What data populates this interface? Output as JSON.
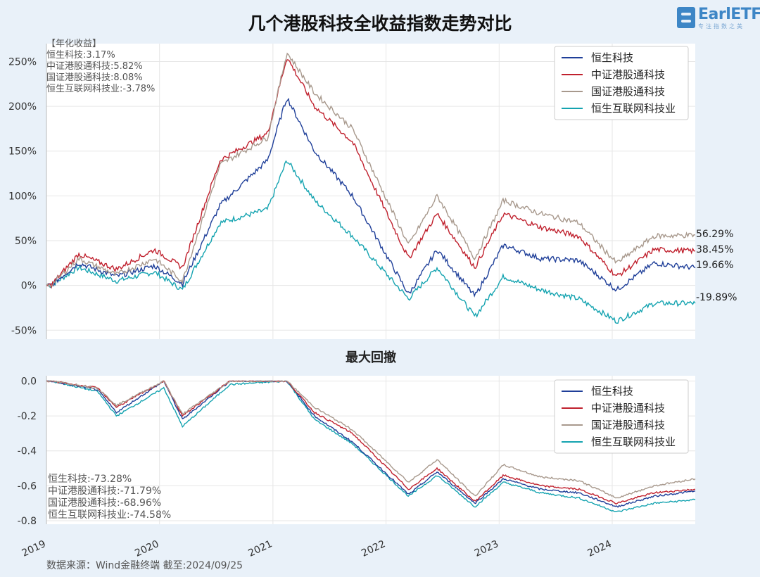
{
  "title": "几个港股科技全收益指数走势对比",
  "logo_text": "EarlETF",
  "logo_sub": "专注指数之美",
  "source": "数据来源：Wind金融终端 截至:2024/09/25",
  "colors": {
    "恒生科技": "#1f3f99",
    "中证港股通科技": "#c0212e",
    "国证港股通科技": "#a8998d",
    "恒生互联网科技业": "#14a3b0"
  },
  "chart_data": [
    {
      "type": "line",
      "title": "",
      "ylim": [
        -60,
        270
      ],
      "yticks": [
        "250%",
        "200%",
        "150%",
        "100%",
        "50%",
        "0%",
        "-50%"
      ],
      "ytick_values": [
        250,
        200,
        150,
        100,
        50,
        0,
        -50
      ],
      "xticks": [
        "2019",
        "2020",
        "2021",
        "2022",
        "2023",
        "2024"
      ],
      "xrange": [
        "2019-01-01",
        "2024-09-25"
      ],
      "legend": "top-right",
      "annotation_title": "【年化收益】",
      "annotations": [
        "恒生科技:3.17%",
        "中证港股通科技:5.82%",
        "国证港股通科技:8.08%",
        "恒生互联网科技业:-3.78%"
      ],
      "end_labels": [
        "56.29%",
        "38.45%",
        "19.66%",
        "-19.89%"
      ],
      "series": [
        {
          "name": "恒生科技",
          "x": [
            "2019-01",
            "2019-04",
            "2019-08",
            "2019-12",
            "2020-03",
            "2020-07",
            "2020-12",
            "2021-02",
            "2021-05",
            "2021-09",
            "2022-03",
            "2022-06",
            "2022-10",
            "2023-01",
            "2023-05",
            "2023-09",
            "2024-01",
            "2024-05",
            "2024-09-25"
          ],
          "y": [
            0,
            25,
            10,
            22,
            2,
            90,
            140,
            210,
            150,
            100,
            -10,
            40,
            -12,
            45,
            30,
            28,
            -5,
            25,
            19.66
          ]
        },
        {
          "name": "中证港股通科技",
          "x": [
            "2019-01",
            "2019-04",
            "2019-08",
            "2019-12",
            "2020-03",
            "2020-07",
            "2020-12",
            "2021-02",
            "2021-05",
            "2021-09",
            "2022-03",
            "2022-06",
            "2022-10",
            "2023-01",
            "2023-05",
            "2023-09",
            "2024-01",
            "2024-05",
            "2024-09-25"
          ],
          "y": [
            0,
            35,
            18,
            40,
            20,
            140,
            170,
            255,
            200,
            160,
            30,
            80,
            20,
            80,
            65,
            55,
            10,
            40,
            38.45
          ]
        },
        {
          "name": "国证港股通科技",
          "x": [
            "2019-01",
            "2019-04",
            "2019-08",
            "2019-12",
            "2020-03",
            "2020-07",
            "2020-12",
            "2021-02",
            "2021-05",
            "2021-09",
            "2022-03",
            "2022-06",
            "2022-10",
            "2023-01",
            "2023-05",
            "2023-09",
            "2024-01",
            "2024-05",
            "2024-09-25"
          ],
          "y": [
            0,
            30,
            12,
            30,
            5,
            135,
            165,
            260,
            215,
            175,
            45,
            100,
            30,
            95,
            80,
            70,
            25,
            55,
            56.29
          ]
        },
        {
          "name": "恒生互联网科技业",
          "x": [
            "2019-01",
            "2019-04",
            "2019-08",
            "2019-12",
            "2020-03",
            "2020-07",
            "2020-12",
            "2021-02",
            "2021-05",
            "2021-09",
            "2022-03",
            "2022-06",
            "2022-10",
            "2023-01",
            "2023-05",
            "2023-09",
            "2024-01",
            "2024-05",
            "2024-09-25"
          ],
          "y": [
            0,
            20,
            5,
            15,
            -5,
            70,
            85,
            140,
            95,
            55,
            -15,
            20,
            -35,
            10,
            -5,
            -15,
            -40,
            -20,
            -19.89
          ]
        }
      ]
    },
    {
      "type": "line",
      "title": "最大回撤",
      "ylim": [
        -0.82,
        0.03
      ],
      "yticks": [
        "0.0",
        "-0.2",
        "-0.4",
        "-0.6",
        "-0.8"
      ],
      "ytick_values": [
        0,
        -0.2,
        -0.4,
        -0.6,
        -0.8
      ],
      "xticks": [
        "2019",
        "2020",
        "2021",
        "2022",
        "2023",
        "2024"
      ],
      "xrange": [
        "2019-01-01",
        "2024-09-25"
      ],
      "legend": "top-right",
      "annotations": [
        "恒生科技:-73.28%",
        "中证港股通科技:-71.79%",
        "国证港股通科技:-68.96%",
        "恒生互联网科技业:-74.58%"
      ],
      "series": [
        {
          "name": "恒生科技",
          "x": [
            "2019-01",
            "2019-06",
            "2019-08",
            "2020-01",
            "2020-03",
            "2020-08",
            "2021-02",
            "2021-05",
            "2021-09",
            "2022-03",
            "2022-06",
            "2022-10",
            "2023-01",
            "2023-05",
            "2023-09",
            "2024-01",
            "2024-05",
            "2024-09-25"
          ],
          "y": [
            0,
            -0.05,
            -0.18,
            0,
            -0.22,
            0,
            0,
            -0.2,
            -0.35,
            -0.65,
            -0.52,
            -0.7,
            -0.56,
            -0.62,
            -0.64,
            -0.72,
            -0.66,
            -0.63
          ]
        },
        {
          "name": "中证港股通科技",
          "x": [
            "2019-01",
            "2019-06",
            "2019-08",
            "2020-01",
            "2020-03",
            "2020-08",
            "2021-02",
            "2021-05",
            "2021-09",
            "2022-03",
            "2022-06",
            "2022-10",
            "2023-01",
            "2023-05",
            "2023-09",
            "2024-01",
            "2024-05",
            "2024-09-25"
          ],
          "y": [
            0,
            -0.04,
            -0.15,
            0,
            -0.2,
            0,
            0,
            -0.18,
            -0.3,
            -0.62,
            -0.5,
            -0.69,
            -0.54,
            -0.6,
            -0.62,
            -0.7,
            -0.64,
            -0.62
          ]
        },
        {
          "name": "国证港股通科技",
          "x": [
            "2019-01",
            "2019-06",
            "2019-08",
            "2020-01",
            "2020-03",
            "2020-08",
            "2021-02",
            "2021-05",
            "2021-09",
            "2022-03",
            "2022-06",
            "2022-10",
            "2023-01",
            "2023-05",
            "2023-09",
            "2024-01",
            "2024-05",
            "2024-09-25"
          ],
          "y": [
            0,
            -0.04,
            -0.14,
            0,
            -0.19,
            0,
            0,
            -0.15,
            -0.28,
            -0.58,
            -0.45,
            -0.66,
            -0.48,
            -0.55,
            -0.57,
            -0.67,
            -0.6,
            -0.56
          ]
        },
        {
          "name": "恒生互联网科技业",
          "x": [
            "2019-01",
            "2019-06",
            "2019-08",
            "2020-01",
            "2020-03",
            "2020-08",
            "2021-02",
            "2021-05",
            "2021-09",
            "2022-03",
            "2022-06",
            "2022-10",
            "2023-01",
            "2023-05",
            "2023-09",
            "2024-01",
            "2024-05",
            "2024-09-25"
          ],
          "y": [
            0,
            -0.06,
            -0.2,
            -0.04,
            -0.26,
            -0.02,
            0,
            -0.22,
            -0.36,
            -0.66,
            -0.54,
            -0.72,
            -0.58,
            -0.64,
            -0.67,
            -0.75,
            -0.7,
            -0.68
          ]
        }
      ]
    }
  ]
}
